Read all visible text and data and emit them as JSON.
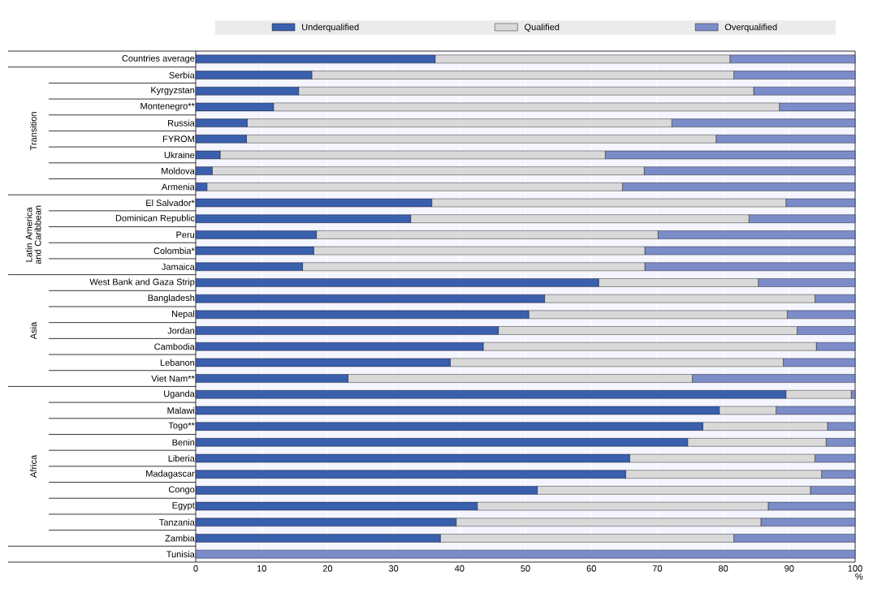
{
  "chart_data": {
    "type": "bar",
    "orientation": "horizontal",
    "stacked": true,
    "categories": [
      "Countries average",
      "Serbia",
      "Kyrgyzstan",
      "Montenegro**",
      "Russia",
      "FYROM",
      "Ukraine",
      "Moldova",
      "Armenia",
      "El Salvador*",
      "Dominican Republic",
      "Peru",
      "Colombia*",
      "Jamaica",
      "West Bank and Gaza Strip",
      "Bangladesh",
      "Nepal",
      "Jordan",
      "Cambodia",
      "Lebanon",
      "Viet Nam**",
      "Uganda",
      "Malawi",
      "Togo**",
      "Benin",
      "Liberia",
      "Madagascar",
      "Congo",
      "Egypt",
      "Tanzania",
      "Zambia",
      "Tunisia"
    ],
    "series": [
      {
        "name": "Underqualified",
        "color": "#3a5fad",
        "values": [
          36.3,
          17.6,
          15.6,
          11.8,
          7.8,
          7.7,
          3.7,
          2.5,
          1.7,
          35.8,
          32.6,
          18.3,
          17.9,
          16.2,
          61.1,
          52.9,
          50.5,
          45.9,
          43.6,
          38.6,
          23.1,
          89.5,
          79.4,
          76.9,
          74.6,
          65.8,
          65.2,
          51.8,
          42.7,
          39.5,
          37.1,
          0
        ]
      },
      {
        "name": "Qualified",
        "color": "#d9d9d9",
        "values": [
          44.7,
          64.0,
          69.0,
          76.7,
          64.4,
          71.2,
          58.4,
          65.5,
          63.0,
          53.7,
          51.3,
          51.8,
          50.2,
          51.9,
          24.2,
          41.0,
          39.2,
          45.3,
          50.5,
          50.5,
          52.2,
          9.9,
          8.6,
          18.9,
          21.0,
          28.1,
          29.7,
          41.4,
          44.1,
          46.2,
          44.5,
          0
        ]
      },
      {
        "name": "Overqualified",
        "color": "#7b8cc8",
        "values": [
          19.0,
          18.4,
          15.4,
          11.5,
          27.8,
          21.1,
          37.9,
          32.0,
          35.3,
          10.5,
          16.1,
          29.9,
          31.9,
          31.9,
          14.7,
          6.1,
          10.3,
          8.8,
          5.9,
          10.9,
          24.7,
          0.6,
          12.0,
          4.2,
          4.4,
          6.1,
          5.1,
          6.8,
          13.2,
          14.3,
          18.4,
          100
        ]
      }
    ],
    "xlim": [
      0,
      100
    ],
    "xticks": [
      0,
      10,
      20,
      30,
      40,
      50,
      60,
      70,
      80,
      90,
      100
    ],
    "xlabel": "%",
    "grid": "x",
    "legend": "top",
    "annotations": [
      "Transition",
      "Latin America and Caribbean",
      "Asia",
      "Africa"
    ]
  }
}
